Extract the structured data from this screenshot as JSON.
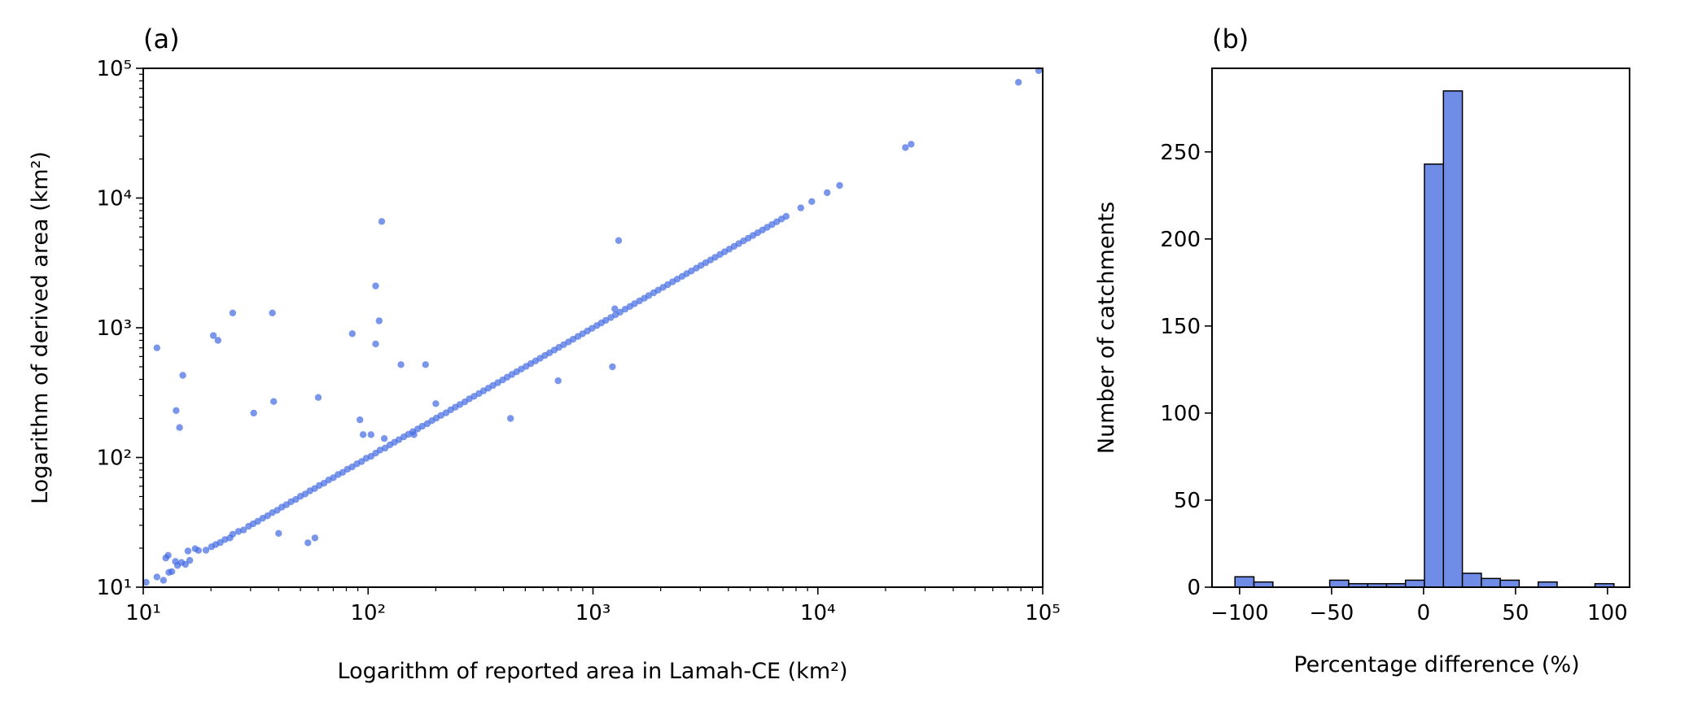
{
  "chart_data": [
    {
      "type": "scatter",
      "panel_label": "(a)",
      "xlabel": "Logarithm of reported area in Lamah-CE (km²)",
      "ylabel": "Logarithm of derived area (km²)",
      "xscale": "log",
      "yscale": "log",
      "xlim": [
        10,
        100000
      ],
      "ylim": [
        10,
        100000
      ],
      "x_ticks": [
        "10¹",
        "10²",
        "10³",
        "10⁴",
        "10⁵"
      ],
      "y_ticks": [
        "10¹",
        "10²",
        "10³",
        "10⁴",
        "10⁵"
      ],
      "color": "#4169e1",
      "grid": false,
      "points": [
        [
          10.3,
          10.9
        ],
        [
          11.5,
          12.0
        ],
        [
          12.3,
          11.3
        ],
        [
          12.6,
          16.8
        ],
        [
          12.9,
          17.6
        ],
        [
          13.0,
          13.0
        ],
        [
          13.4,
          13.2
        ],
        [
          13.9,
          15.8
        ],
        [
          14.2,
          14.7
        ],
        [
          14.8,
          15.5
        ],
        [
          15.4,
          15.0
        ],
        [
          15.8,
          19.0
        ],
        [
          16.1,
          16.1
        ],
        [
          17.0,
          19.8
        ],
        [
          17.6,
          19.2
        ],
        [
          19.0,
          19.3
        ],
        [
          20.1,
          20.5
        ],
        [
          21.0,
          21.3
        ],
        [
          22.0,
          22.1
        ],
        [
          23.1,
          23.3
        ],
        [
          24.3,
          24.0
        ],
        [
          25.0,
          25.6
        ],
        [
          26.5,
          26.9
        ],
        [
          27.9,
          27.6
        ],
        [
          29.4,
          29.5
        ],
        [
          30.8,
          30.8
        ],
        [
          32.3,
          32.2
        ],
        [
          34.0,
          34.0
        ],
        [
          35.7,
          35.5
        ],
        [
          37.5,
          37.6
        ],
        [
          39.4,
          39.2
        ],
        [
          41.3,
          41.4
        ],
        [
          43.3,
          43.2
        ],
        [
          45.4,
          45.6
        ],
        [
          47.7,
          47.5
        ],
        [
          50.0,
          50.2
        ],
        [
          52.5,
          52.3
        ],
        [
          55.1,
          55.3
        ],
        [
          57.8,
          57.6
        ],
        [
          60.6,
          60.9
        ],
        [
          63.6,
          63.3
        ],
        [
          66.7,
          67.0
        ],
        [
          70.0,
          69.8
        ],
        [
          73.5,
          73.8
        ],
        [
          77.1,
          76.8
        ],
        [
          80.9,
          81.2
        ],
        [
          84.9,
          84.6
        ],
        [
          89.1,
          89.4
        ],
        [
          93.5,
          93.1
        ],
        [
          98.1,
          98.5
        ],
        [
          103,
          102
        ],
        [
          108,
          108
        ],
        [
          113,
          114
        ],
        [
          119,
          118
        ],
        [
          125,
          125
        ],
        [
          131,
          131
        ],
        [
          137,
          137
        ],
        [
          144,
          144
        ],
        [
          151,
          151
        ],
        [
          158,
          158
        ],
        [
          166,
          166
        ],
        [
          174,
          174
        ],
        [
          183,
          182
        ],
        [
          192,
          192
        ],
        [
          201,
          201
        ],
        [
          211,
          211
        ],
        [
          222,
          221
        ],
        [
          233,
          233
        ],
        [
          244,
          244
        ],
        [
          256,
          256
        ],
        [
          269,
          268
        ],
        [
          282,
          283
        ],
        [
          296,
          296
        ],
        [
          311,
          311
        ],
        [
          326,
          326
        ],
        [
          342,
          342
        ],
        [
          359,
          359
        ],
        [
          377,
          377
        ],
        [
          396,
          396
        ],
        [
          415,
          416
        ],
        [
          436,
          436
        ],
        [
          457,
          457
        ],
        [
          480,
          480
        ],
        [
          504,
          504
        ],
        [
          529,
          529
        ],
        [
          555,
          555
        ],
        [
          582,
          582
        ],
        [
          611,
          611
        ],
        [
          641,
          641
        ],
        [
          673,
          673
        ],
        [
          706,
          706
        ],
        [
          741,
          741
        ],
        [
          778,
          778
        ],
        [
          816,
          816
        ],
        [
          857,
          857
        ],
        [
          899,
          899
        ],
        [
          944,
          944
        ],
        [
          990,
          990
        ],
        [
          1040,
          1040
        ],
        [
          1090,
          1090
        ],
        [
          1140,
          1140
        ],
        [
          1200,
          1200
        ],
        [
          1260,
          1260
        ],
        [
          1320,
          1320
        ],
        [
          1390,
          1390
        ],
        [
          1460,
          1460
        ],
        [
          1530,
          1530
        ],
        [
          1610,
          1610
        ],
        [
          1690,
          1690
        ],
        [
          1770,
          1770
        ],
        [
          1860,
          1860
        ],
        [
          1950,
          1950
        ],
        [
          2050,
          2050
        ],
        [
          2150,
          2150
        ],
        [
          2260,
          2260
        ],
        [
          2370,
          2370
        ],
        [
          2490,
          2490
        ],
        [
          2610,
          2610
        ],
        [
          2740,
          2740
        ],
        [
          2880,
          2880
        ],
        [
          3020,
          3020
        ],
        [
          3170,
          3170
        ],
        [
          3330,
          3330
        ],
        [
          3490,
          3490
        ],
        [
          3670,
          3670
        ],
        [
          3850,
          3850
        ],
        [
          4040,
          4040
        ],
        [
          4240,
          4240
        ],
        [
          4450,
          4450
        ],
        [
          4670,
          4670
        ],
        [
          4900,
          4900
        ],
        [
          5150,
          5150
        ],
        [
          5400,
          5400
        ],
        [
          5670,
          5670
        ],
        [
          5950,
          5950
        ],
        [
          6250,
          6250
        ],
        [
          6560,
          6560
        ],
        [
          6890,
          6890
        ],
        [
          7230,
          7230
        ],
        [
          8400,
          8400
        ],
        [
          9400,
          9400
        ],
        [
          11000,
          11000
        ],
        [
          12500,
          12500
        ],
        [
          24500,
          24500
        ],
        [
          26000,
          26000
        ],
        [
          78000,
          78000
        ],
        [
          96000,
          96000
        ],
        [
          11.5,
          700
        ],
        [
          14.0,
          230
        ],
        [
          14.5,
          170
        ],
        [
          15.0,
          430
        ],
        [
          20.5,
          870
        ],
        [
          21.5,
          800
        ],
        [
          25.0,
          1300
        ],
        [
          31.0,
          220
        ],
        [
          37.5,
          1300
        ],
        [
          38.0,
          270
        ],
        [
          40.0,
          26.0
        ],
        [
          54.0,
          22.0
        ],
        [
          58.0,
          24.0
        ],
        [
          60.0,
          290
        ],
        [
          85.0,
          900
        ],
        [
          92.0,
          195
        ],
        [
          95.0,
          150
        ],
        [
          103,
          150
        ],
        [
          108,
          750
        ],
        [
          108,
          2100
        ],
        [
          112,
          1130
        ],
        [
          115,
          6600
        ],
        [
          118,
          140
        ],
        [
          140,
          520
        ],
        [
          160,
          150
        ],
        [
          180,
          520
        ],
        [
          200,
          260
        ],
        [
          430,
          200
        ],
        [
          700,
          390
        ],
        [
          1220,
          500
        ],
        [
          1300,
          4700
        ],
        [
          1250,
          1400
        ]
      ]
    },
    {
      "type": "histogram",
      "panel_label": "(b)",
      "xlabel": "Percentage difference (%)",
      "ylabel": "Number of catchments",
      "xlim": [
        -115,
        112
      ],
      "ylim": [
        0,
        298
      ],
      "x_ticks": [
        -100,
        -50,
        0,
        50,
        100
      ],
      "y_ticks": [
        0,
        50,
        100,
        150,
        200,
        250
      ],
      "color": "#6f8ce6",
      "edgecolor": "#000000",
      "grid": false,
      "bin_width": 10.3,
      "bin_start": -102.5,
      "counts": [
        6,
        3,
        0,
        0,
        0,
        4,
        2,
        2,
        2,
        4,
        243,
        285,
        8,
        5,
        4,
        0,
        3,
        0,
        0,
        2,
        0
      ]
    }
  ]
}
